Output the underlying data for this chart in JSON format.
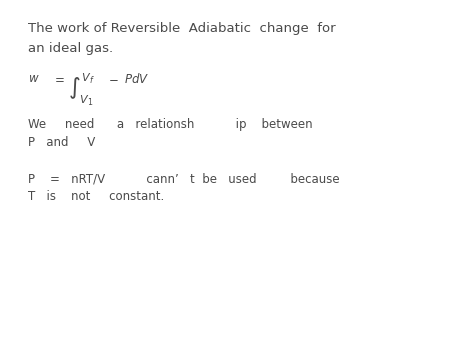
{
  "background_color": "#ffffff",
  "title_line1": "The work of Reversible  Adiabatic  change  for",
  "title_line2": "an ideal gas.",
  "line2_text": "We     need      a   relationsh           ip    between",
  "line3_text": "P   and     V",
  "line4_text": "P    =   nRT/V           cann’   t  be   used         because",
  "line5_text": "T   is    not     constant.",
  "font_color": "#4a4a4a",
  "font_size_title": 9.5,
  "font_size_body": 8.5,
  "font_size_formula": 8.5
}
